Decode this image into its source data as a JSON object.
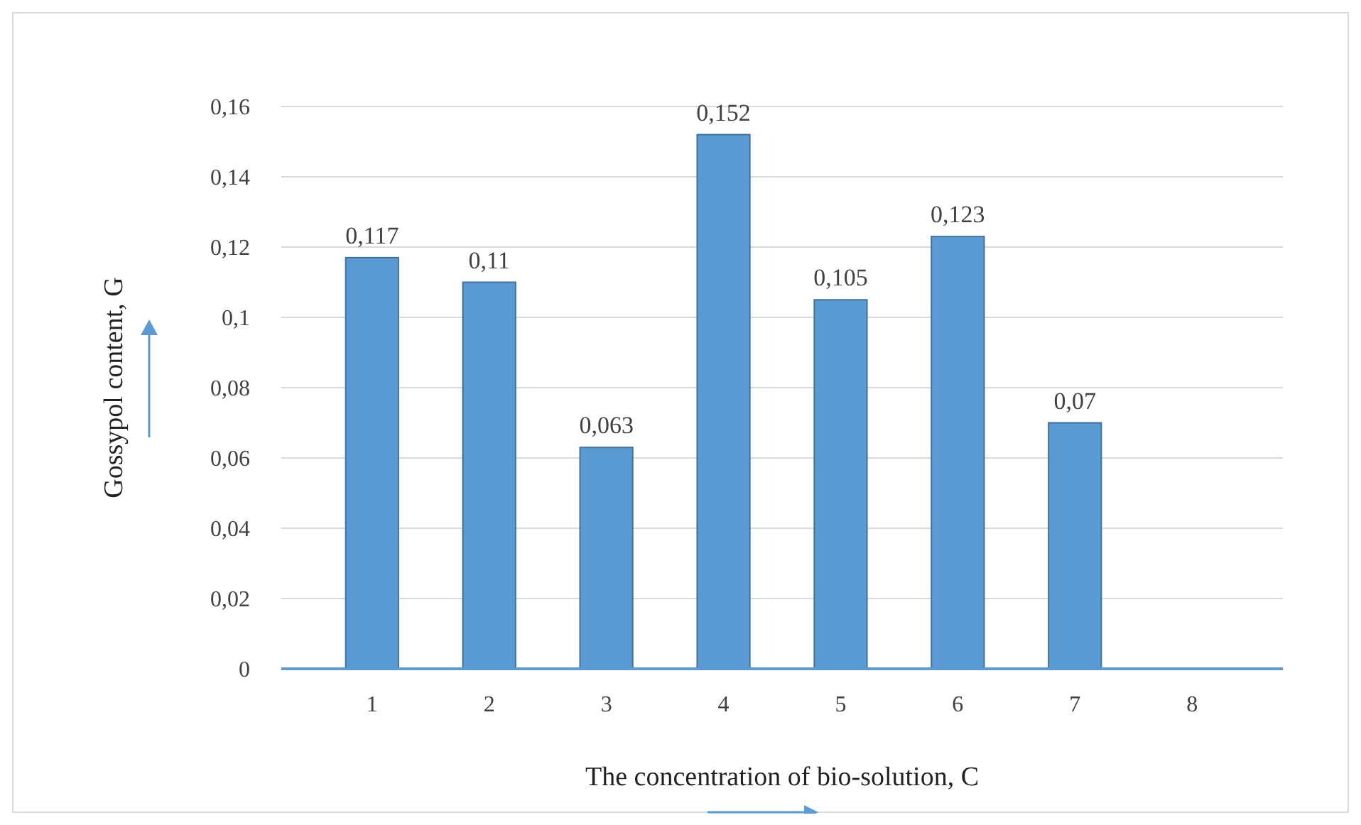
{
  "chart_data": {
    "type": "bar",
    "xlabel": "The concentration of bio-solution, C",
    "ylabel": "Gossypol content, G",
    "categories": [
      "1",
      "2",
      "3",
      "4",
      "5",
      "6",
      "7",
      "8"
    ],
    "values": [
      0.117,
      0.11,
      0.063,
      0.152,
      0.105,
      0.123,
      0.07,
      null
    ],
    "value_labels": [
      "0,117",
      "0,11",
      "0,063",
      "0,152",
      "0,105",
      "0,123",
      "0,07",
      null
    ],
    "color": "#5b9bd5",
    "ylim": [
      0,
      0.16
    ],
    "yticks": [
      0,
      {
        "value": 0.02,
        "label": "0,02"
      },
      {
        "value": 0.04,
        "label": "0,04"
      },
      {
        "value": 0.06,
        "label": "0,06"
      },
      {
        "value": 0.08,
        "label": "0,08"
      },
      {
        "value": 0.1,
        "label": "0,1"
      },
      {
        "value": 0.12,
        "label": "0,12"
      },
      {
        "value": 0.14,
        "label": "0,14"
      },
      {
        "value": 0.16,
        "label": "0,16"
      }
    ],
    "grid": "y"
  }
}
